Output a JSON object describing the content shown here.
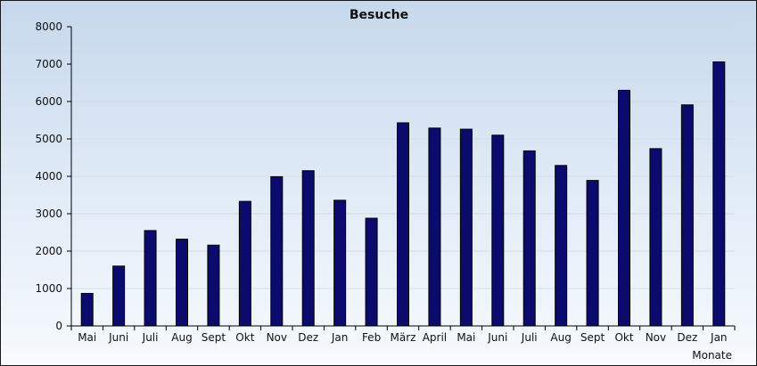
{
  "chart_data": {
    "type": "bar",
    "title": "Besuche",
    "xlabel": "Monate",
    "ylabel": "",
    "ylim": [
      0,
      8000
    ],
    "yticks": [
      0,
      1000,
      2000,
      3000,
      4000,
      5000,
      6000,
      7000,
      8000
    ],
    "grid": true,
    "categories": [
      "Mai",
      "Juni",
      "Juli",
      "Aug",
      "Sept",
      "Okt",
      "Nov",
      "Dez",
      "Jan",
      "Feb",
      "März",
      "April",
      "Mai",
      "Juni",
      "Juli",
      "Aug",
      "Sept",
      "Okt",
      "Nov",
      "Dez",
      "Jan"
    ],
    "values": [
      870,
      1600,
      2550,
      2320,
      2160,
      3330,
      3990,
      4150,
      3360,
      2880,
      5430,
      5290,
      5260,
      5100,
      4680,
      4290,
      3890,
      6300,
      4740,
      5910,
      7060
    ],
    "bar_color": "#0b0b6e",
    "bar_edge_color": "#000000"
  }
}
